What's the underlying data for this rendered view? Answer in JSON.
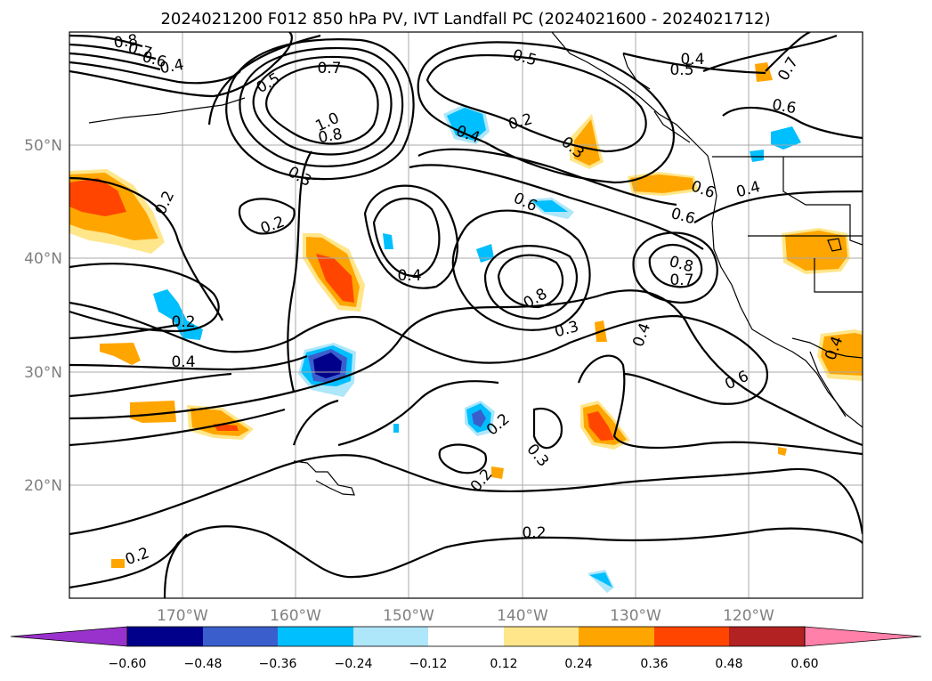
{
  "title": "2024021200 F012 850 hPa PV, IVT Landfall PC (2024021600 - 2024021712)",
  "lon_ticks": [
    "170°W",
    "160°W",
    "150°W",
    "140°W",
    "130°W",
    "120°W"
  ],
  "lat_ticks": [
    "50°N",
    "40°N",
    "30°N",
    "20°N"
  ],
  "colorbar": {
    "ticks": [
      "−0.60",
      "−0.48",
      "−0.36",
      "−0.24",
      "−0.12",
      "0.12",
      "0.24",
      "0.36",
      "0.48",
      "0.60"
    ],
    "colors": [
      "#9932cc",
      "#00008b",
      "#3a5fcd",
      "#00bfff",
      "#aee6fa",
      "#ffffff",
      "#ffe68a",
      "#ffa500",
      "#ff4500",
      "#b22222",
      "#ff80a8"
    ]
  },
  "contour_labels": [
    "0.8",
    "0.7",
    "0.6",
    "0.4",
    "0.5",
    "0.7",
    "1.0",
    "0.8",
    "0.5",
    "0.2",
    "0.4",
    "0.4",
    "0.5",
    "0.7",
    "0.6",
    "0.3",
    "0.3",
    "0.2",
    "0.2",
    "0.6",
    "0.6",
    "0.4",
    "0.6",
    "0.8",
    "0.7",
    "0.4",
    "0.8",
    "0.2",
    "0.4",
    "0.3",
    "0.4",
    "0.4",
    "0.6",
    "0.2",
    "0.3",
    "0.2",
    "0.2",
    "0.2"
  ],
  "colors": {
    "neg_strong": "#00008b",
    "neg_mid": "#3a5fcd",
    "neg_light": "#00bfff",
    "neg_faint": "#aee6fa",
    "pos_faint": "#ffe68a",
    "pos_light": "#ffa500",
    "pos_mid": "#ff4500",
    "pos_strong": "#b22222"
  },
  "chart_data": {
    "type": "heatmap",
    "variable": "850 hPa PV, IVT Landfall PC",
    "lon_range": [
      -180,
      -110
    ],
    "lat_range": [
      10,
      60
    ],
    "levels": [
      -0.6,
      -0.48,
      -0.36,
      -0.24,
      -0.12,
      0.12,
      0.24,
      0.36,
      0.48,
      0.6
    ],
    "contour_levels": [
      0.2,
      0.3,
      0.4,
      0.5,
      0.6,
      0.7,
      0.8,
      1.0
    ]
  }
}
